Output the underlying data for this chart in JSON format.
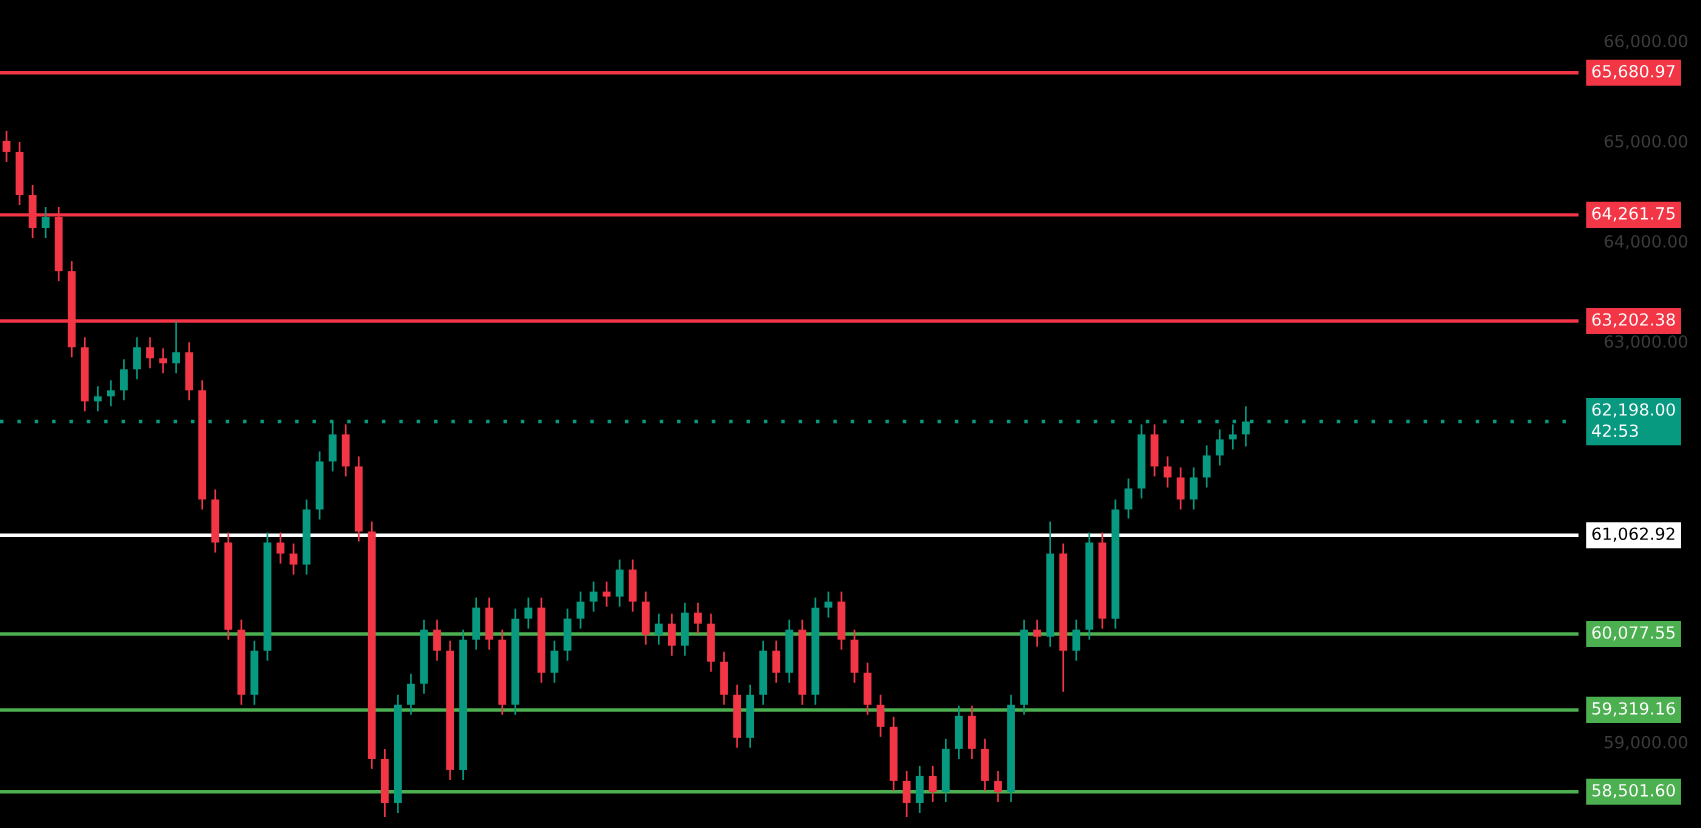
{
  "chart_data": {
    "type": "candlestick",
    "categories": [
      null,
      null,
      null,
      null,
      null,
      null,
      null,
      null,
      null,
      null,
      null,
      null,
      null,
      null,
      null,
      null,
      null,
      null,
      null,
      null,
      null,
      null,
      null,
      null,
      null,
      null,
      null,
      null,
      null,
      null,
      null,
      null,
      null,
      null,
      null,
      null,
      null,
      null,
      null,
      null,
      null,
      null,
      null,
      null,
      null,
      null,
      null,
      null,
      null,
      null,
      null,
      null,
      null,
      null,
      null,
      null,
      null,
      null,
      null,
      null,
      null,
      null,
      null,
      null,
      null,
      null,
      null,
      null,
      null,
      null,
      null,
      null,
      null,
      null,
      null,
      null,
      null,
      null,
      null,
      null,
      null,
      null,
      null,
      null,
      null,
      null,
      null,
      null,
      null,
      null,
      null,
      null,
      null,
      null,
      null,
      null,
      null,
      null,
      null,
      null,
      null,
      null,
      null,
      null,
      null,
      null,
      null,
      null,
      null,
      null,
      null,
      null,
      null,
      null,
      null,
      null,
      null,
      null,
      null,
      null,
      null
    ],
    "colors": [
      "#f23645",
      "#f23645",
      "#f23645",
      "#089981",
      "#f23645",
      "#f23645",
      "#f23645",
      "#089981",
      "#089981",
      "#089981",
      "#089981",
      "#f23645",
      "#f23645",
      "#089981",
      "#f23645",
      "#f23645",
      "#f23645",
      "#f23645",
      "#f23645",
      "#089981",
      "#089981",
      "#f23645",
      "#f23645",
      "#089981",
      "#089981",
      "#089981",
      "#f23645",
      "#f23645",
      "#f23645",
      "#f23645",
      "#089981",
      "#089981",
      "#089981",
      "#f23645",
      "#f23645",
      "#089981",
      "#089981",
      "#f23645",
      "#f23645",
      "#089981",
      "#089981",
      "#f23645",
      "#089981",
      "#089981",
      "#089981",
      "#089981",
      "#f23645",
      "#089981",
      "#f23645",
      "#f23645",
      "#089981",
      "#f23645",
      "#089981",
      "#f23645",
      "#f23645",
      "#f23645",
      "#f23645",
      "#089981",
      "#089981",
      "#f23645",
      "#089981",
      "#f23645",
      "#089981",
      "#089981",
      "#f23645",
      "#f23645",
      "#f23645",
      "#f23645",
      "#f23645",
      "#f23645",
      "#089981",
      "#f23645",
      "#089981",
      "#089981",
      "#f23645",
      "#f23645",
      "#f23645",
      "#089981",
      "#089981",
      "#f23645",
      "#089981",
      "#f23645",
      "#089981",
      "#089981",
      "#f23645",
      "#089981",
      "#089981",
      "#089981",
      "#f23645",
      "#f23645",
      "#f23645",
      "#089981",
      "#089981",
      "#089981",
      "#089981",
      "#089981",
      null,
      null,
      null,
      null,
      null,
      null,
      null,
      null,
      null,
      null,
      null,
      null,
      null,
      null,
      null,
      null,
      null,
      null,
      null,
      null,
      null,
      null,
      null,
      null,
      null
    ],
    "ohlc": [
      [
        65000,
        65100,
        64790,
        64890
      ],
      [
        64890,
        64990,
        64360,
        64460
      ],
      [
        64460,
        64560,
        64030,
        64130
      ],
      [
        64130,
        64340,
        64030,
        64240
      ],
      [
        64240,
        64340,
        63600,
        63700
      ],
      [
        63700,
        63800,
        62840,
        62940
      ],
      [
        62940,
        63040,
        62300,
        62400
      ],
      [
        62400,
        62550,
        62300,
        62450
      ],
      [
        62450,
        62610,
        62350,
        62510
      ],
      [
        62510,
        62820,
        62410,
        62720
      ],
      [
        62720,
        63040,
        62620,
        62940
      ],
      [
        62940,
        63040,
        62730,
        62830
      ],
      [
        62830,
        62930,
        62680,
        62780
      ],
      [
        62780,
        63200,
        62680,
        62890
      ],
      [
        62890,
        62990,
        62410,
        62510
      ],
      [
        62510,
        62610,
        61320,
        61420
      ],
      [
        61420,
        61520,
        60890,
        60990
      ],
      [
        60990,
        61090,
        60020,
        60120
      ],
      [
        60120,
        60220,
        59370,
        59470
      ],
      [
        59470,
        60010,
        59370,
        59910
      ],
      [
        59910,
        61090,
        59810,
        60990
      ],
      [
        60990,
        61090,
        60780,
        60880
      ],
      [
        60880,
        60980,
        60670,
        60770
      ],
      [
        60770,
        61420,
        60670,
        61320
      ],
      [
        61320,
        61900,
        61220,
        61800
      ],
      [
        61800,
        62200,
        61700,
        62070
      ],
      [
        62070,
        62170,
        61650,
        61750
      ],
      [
        61750,
        61850,
        61000,
        61100
      ],
      [
        61100,
        61200,
        58730,
        58830
      ],
      [
        58830,
        58930,
        58250,
        58390
      ],
      [
        58390,
        59470,
        58290,
        59370
      ],
      [
        59370,
        59680,
        59270,
        59580
      ],
      [
        59580,
        60220,
        59480,
        60120
      ],
      [
        60120,
        60220,
        59810,
        59910
      ],
      [
        59910,
        60010,
        58620,
        58720
      ],
      [
        58720,
        60120,
        58620,
        60020
      ],
      [
        60020,
        60440,
        59920,
        60340
      ],
      [
        60340,
        60440,
        59920,
        60020
      ],
      [
        60020,
        60120,
        59270,
        59370
      ],
      [
        59370,
        60330,
        59270,
        60230
      ],
      [
        60230,
        60440,
        60130,
        60340
      ],
      [
        60340,
        60440,
        59590,
        59690
      ],
      [
        59690,
        60010,
        59590,
        59910
      ],
      [
        59910,
        60330,
        59810,
        60230
      ],
      [
        60230,
        60500,
        60130,
        60400
      ],
      [
        60400,
        60600,
        60300,
        60500
      ],
      [
        60500,
        60600,
        60350,
        60450
      ],
      [
        60450,
        60820,
        60350,
        60720
      ],
      [
        60720,
        60820,
        60300,
        60400
      ],
      [
        60400,
        60500,
        59970,
        60070
      ],
      [
        60070,
        60280,
        59970,
        60180
      ],
      [
        60180,
        60280,
        59860,
        59960
      ],
      [
        59960,
        60390,
        59860,
        60290
      ],
      [
        60290,
        60390,
        60080,
        60180
      ],
      [
        60180,
        60280,
        59700,
        59800
      ],
      [
        59800,
        59900,
        59370,
        59470
      ],
      [
        59470,
        59570,
        58940,
        59040
      ],
      [
        59040,
        59570,
        58940,
        59470
      ],
      [
        59470,
        60010,
        59370,
        59910
      ],
      [
        59910,
        60010,
        59590,
        59690
      ],
      [
        59690,
        60220,
        59590,
        60120
      ],
      [
        60120,
        60220,
        59370,
        59470
      ],
      [
        59470,
        60440,
        59370,
        60340
      ],
      [
        60340,
        60500,
        60240,
        60400
      ],
      [
        60400,
        60500,
        59920,
        60020
      ],
      [
        60020,
        60120,
        59590,
        59690
      ],
      [
        59690,
        59790,
        59270,
        59370
      ],
      [
        59370,
        59470,
        59050,
        59150
      ],
      [
        59150,
        59250,
        58510,
        58610
      ],
      [
        58610,
        58710,
        58250,
        58390
      ],
      [
        58390,
        58760,
        58290,
        58660
      ],
      [
        58660,
        58760,
        58400,
        58500
      ],
      [
        58500,
        59030,
        58400,
        58930
      ],
      [
        58930,
        59360,
        58830,
        59260
      ],
      [
        59260,
        59360,
        58830,
        58930
      ],
      [
        58930,
        59030,
        58510,
        58610
      ],
      [
        58610,
        58710,
        58400,
        58500
      ],
      [
        58500,
        59470,
        58400,
        59370
      ],
      [
        59370,
        60220,
        59270,
        60120
      ],
      [
        60120,
        60220,
        59950,
        60050
      ],
      [
        60050,
        61200,
        59950,
        60880
      ],
      [
        60880,
        60980,
        59500,
        59910
      ],
      [
        59910,
        60220,
        59810,
        60120
      ],
      [
        60120,
        61090,
        60020,
        60990
      ],
      [
        60990,
        61090,
        60130,
        60230
      ],
      [
        60230,
        61420,
        60130,
        61320
      ],
      [
        61320,
        61630,
        61230,
        61530
      ],
      [
        61530,
        62170,
        61430,
        62070
      ],
      [
        62070,
        62170,
        61650,
        61750
      ],
      [
        61750,
        61850,
        61540,
        61640
      ],
      [
        61640,
        61740,
        61320,
        61420
      ],
      [
        61420,
        61740,
        61320,
        61640
      ],
      [
        61640,
        61960,
        61540,
        61860
      ],
      [
        61860,
        62120,
        61760,
        62020
      ],
      [
        62020,
        62170,
        61920,
        62070
      ],
      [
        62070,
        62350,
        61950,
        62198
      ],
      null,
      null,
      null,
      null,
      null,
      null,
      null,
      null,
      null,
      null,
      null,
      null,
      null,
      null,
      null,
      null,
      null,
      null,
      null,
      null,
      null,
      null,
      null,
      null,
      null
    ],
    "ylim": [
      58140,
      66407
    ],
    "yticks": [
      {
        "value": 66000,
        "label": "66,000.00"
      },
      {
        "value": 65000,
        "label": "65,000.00"
      },
      {
        "value": 64000,
        "label": "64,000.00"
      },
      {
        "value": 63000,
        "label": "63,000.00"
      },
      {
        "value": 59000,
        "label": "59,000.00"
      }
    ],
    "tick_labels": "y",
    "grid": false,
    "ref_lines": [
      {
        "axis": "y",
        "value": 65680.97,
        "label": "65,680.97",
        "color": "#f23645",
        "line_style": "solid"
      },
      {
        "axis": "y",
        "value": 64261.75,
        "label": "64,261.75",
        "color": "#f23645",
        "line_style": "solid"
      },
      {
        "axis": "y",
        "value": 63202.38,
        "label": "63,202.38",
        "color": "#f23645",
        "line_style": "solid"
      },
      {
        "axis": "y",
        "value": 62198.0,
        "label": "62,198.00\n42:53",
        "color": "#089981",
        "line_style": "dotted"
      },
      {
        "axis": "y",
        "value": 61062.92,
        "label": "61,062.92",
        "color": "#ffffff",
        "line_style": "solid"
      },
      {
        "axis": "y",
        "value": 60077.55,
        "label": "60,077.55",
        "color": "#4caf50",
        "line_style": "solid"
      },
      {
        "axis": "y",
        "value": 59319.16,
        "label": "59,319.16",
        "color": "#4caf50",
        "line_style": "solid"
      },
      {
        "axis": "y",
        "value": 58501.6,
        "label": "58,501.60",
        "color": "#4caf50",
        "line_style": "solid"
      }
    ]
  }
}
